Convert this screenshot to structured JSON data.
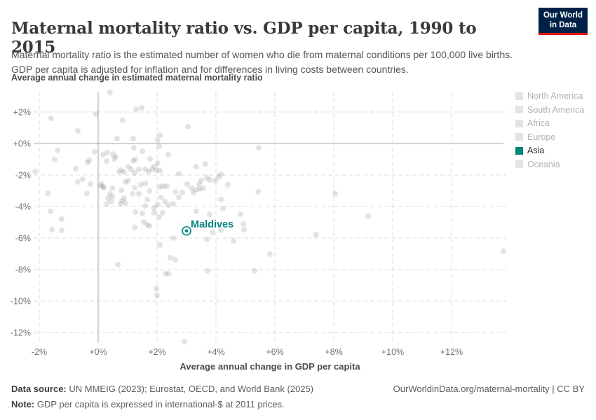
{
  "header": {
    "title": "Maternal mortality ratio vs. GDP per capita, 1990 to 2015",
    "subtitle": "Maternal mortality ratio is the estimated number of women who die from maternal conditions per 100,000 live births. GDP per capita is adjusted for inflation and for differences in living costs between countries."
  },
  "logo": {
    "line1": "Our World",
    "line2": "in Data",
    "bg": "#002147",
    "stripe": "#e3120b"
  },
  "legend": {
    "items": [
      {
        "label": "North America",
        "color": "#e4e4e4",
        "active": false
      },
      {
        "label": "South America",
        "color": "#e4e4e4",
        "active": false
      },
      {
        "label": "Africa",
        "color": "#e4e4e4",
        "active": false
      },
      {
        "label": "Europe",
        "color": "#e4e4e4",
        "active": false
      },
      {
        "label": "Asia",
        "color": "#00847e",
        "active": true
      },
      {
        "label": "Oceania",
        "color": "#e4e4e4",
        "active": false
      }
    ]
  },
  "footer": {
    "datasource_label": "Data source:",
    "datasource_text": " UN MMEIG (2023); Eurostat, OECD, and World Bank (2025)",
    "note_label": "Note:",
    "note_text": " GDP per capita is expressed in international-$ at 2011 prices.",
    "link": "OurWorldinData.org/maternal-mortality | CC BY"
  },
  "chart_data": {
    "type": "scatter",
    "title": "Maternal mortality ratio vs. GDP per capita, 1990 to 2015",
    "ylabel_top": "Average annual change in estimated maternal mortality ratio",
    "xlabel": "Average annual change in GDP per capita",
    "x_ticks": [
      "-2%",
      "+0%",
      "+2%",
      "+4%",
      "+6%",
      "+8%",
      "+10%",
      "+12%"
    ],
    "x_tick_values": [
      -2,
      0,
      2,
      4,
      6,
      8,
      10,
      12
    ],
    "y_ticks": [
      "+2%",
      "+0%",
      "-2%",
      "-4%",
      "-6%",
      "-8%",
      "-10%",
      "-12%"
    ],
    "y_tick_values": [
      2,
      0,
      -2,
      -4,
      -6,
      -8,
      -10,
      -12
    ],
    "xlim": [
      -2.2,
      13.9
    ],
    "ylim": [
      -12.7,
      3.3
    ],
    "grid": true,
    "legend_position": "right",
    "points_color": "#808080",
    "grid_color": "#dedede",
    "zero_line_color": "#a6a6a6",
    "tick_color": "#737373",
    "highlight": {
      "name": "Maldives",
      "x": 3.0,
      "y": -5.55,
      "color": "#00847e"
    },
    "points": [
      [
        0.4,
        3.24
      ],
      [
        1.29,
        2.18
      ],
      [
        1.48,
        2.27
      ],
      [
        -1.6,
        1.6
      ],
      [
        -0.07,
        1.87
      ],
      [
        0.83,
        1.47
      ],
      [
        3.05,
        1.07
      ],
      [
        -0.69,
        0.8
      ],
      [
        2.1,
        0.53
      ],
      [
        -1.38,
        -0.44
      ],
      [
        -1.48,
        -1.02
      ],
      [
        -2.14,
        -1.78
      ],
      [
        -0.76,
        -1.6
      ],
      [
        -0.36,
        -1.2
      ],
      [
        -0.31,
        -1.07
      ],
      [
        -0.12,
        -0.53
      ],
      [
        -0.69,
        -2.44
      ],
      [
        -0.52,
        -2.27
      ],
      [
        -0.26,
        -2.58
      ],
      [
        -0.38,
        -3.16
      ],
      [
        -1.71,
        -3.16
      ],
      [
        -1.62,
        -4.31
      ],
      [
        -1.24,
        -4.8
      ],
      [
        -1.57,
        -5.47
      ],
      [
        -1.24,
        -5.51
      ],
      [
        0.64,
        0.31
      ],
      [
        1.19,
        0.31
      ],
      [
        2.02,
        0.22
      ],
      [
        1.21,
        -0.27
      ],
      [
        1.5,
        -0.49
      ],
      [
        2.07,
        -0.18
      ],
      [
        0.17,
        -0.71
      ],
      [
        0.31,
        -0.58
      ],
      [
        0.5,
        -0.67
      ],
      [
        0.6,
        -0.84
      ],
      [
        0.55,
        -0.98
      ],
      [
        0.29,
        -1.11
      ],
      [
        1.76,
        -0.98
      ],
      [
        1.9,
        -1.47
      ],
      [
        2.02,
        -1.24
      ],
      [
        2.38,
        -0.71
      ],
      [
        1.26,
        -1.02
      ],
      [
        1.19,
        -1.11
      ],
      [
        1.02,
        -1.47
      ],
      [
        0.79,
        -1.69
      ],
      [
        0.71,
        -1.78
      ],
      [
        0.88,
        -1.82
      ],
      [
        1.12,
        -1.64
      ],
      [
        1.24,
        -1.87
      ],
      [
        1.38,
        -1.64
      ],
      [
        1.6,
        -1.64
      ],
      [
        1.71,
        -1.78
      ],
      [
        1.83,
        -1.64
      ],
      [
        1.98,
        -1.69
      ],
      [
        2.1,
        -1.73
      ],
      [
        2.74,
        -1.91
      ],
      [
        3.33,
        -1.47
      ],
      [
        3.64,
        -1.29
      ],
      [
        0.07,
        -2.67
      ],
      [
        0.19,
        -2.8
      ],
      [
        0.48,
        -2.84
      ],
      [
        0.79,
        -2.98
      ],
      [
        0.93,
        -2.44
      ],
      [
        1.02,
        -2.36
      ],
      [
        1.24,
        -2.8
      ],
      [
        1.38,
        -3.2
      ],
      [
        1.17,
        -3.2
      ],
      [
        1.45,
        -2.62
      ],
      [
        1.6,
        -2.53
      ],
      [
        1.74,
        -3.02
      ],
      [
        2.1,
        -2.76
      ],
      [
        2.21,
        -2.71
      ],
      [
        2.33,
        -2.71
      ],
      [
        2.62,
        -3.07
      ],
      [
        2.74,
        -3.42
      ],
      [
        2.86,
        -3.11
      ],
      [
        3.02,
        -2.58
      ],
      [
        3.17,
        -2.84
      ],
      [
        3.24,
        -3.11
      ],
      [
        3.33,
        -2.93
      ],
      [
        3.45,
        -2.89
      ],
      [
        3.5,
        -2.36
      ],
      [
        3.69,
        -2.18
      ],
      [
        3.79,
        -2.31
      ],
      [
        0.33,
        -3.47
      ],
      [
        0.45,
        -3.69
      ],
      [
        0.76,
        -3.82
      ],
      [
        0.93,
        -3.78
      ],
      [
        1.67,
        -3.56
      ],
      [
        2.02,
        -3.87
      ],
      [
        2.14,
        -3.42
      ],
      [
        2.26,
        -3.69
      ],
      [
        2.38,
        -3.91
      ],
      [
        2.55,
        -3.82
      ],
      [
        0.29,
        -3.82
      ],
      [
        1.6,
        -3.96
      ],
      [
        1.9,
        -4.09
      ],
      [
        0.12,
        -2.58
      ],
      [
        0.17,
        -2.76
      ],
      [
        0.4,
        -3.2
      ],
      [
        0.48,
        -3.38
      ],
      [
        0.81,
        -3.64
      ],
      [
        0.88,
        -3.47
      ],
      [
        5.45,
        -0.27
      ],
      [
        3.43,
        -2.58
      ],
      [
        3.57,
        -2.84
      ],
      [
        3.98,
        -2.36
      ],
      [
        4.1,
        -2.13
      ],
      [
        4.17,
        -1.96
      ],
      [
        4.4,
        -2.62
      ],
      [
        5.43,
        -3.07
      ],
      [
        8.05,
        -3.2
      ],
      [
        4.17,
        -3.56
      ],
      [
        4.24,
        -4.13
      ],
      [
        3.79,
        -4.49
      ],
      [
        3.33,
        -4.31
      ],
      [
        4.83,
        -4.49
      ],
      [
        3.88,
        -5.64
      ],
      [
        4.17,
        -5.51
      ],
      [
        4.93,
        -5.11
      ],
      [
        4.95,
        -5.47
      ],
      [
        3.69,
        -6.09
      ],
      [
        4.6,
        -6.18
      ],
      [
        7.4,
        -5.78
      ],
      [
        5.83,
        -7.02
      ],
      [
        3.71,
        -8.09
      ],
      [
        5.31,
        -8.09
      ],
      [
        1.26,
        -4.36
      ],
      [
        1.5,
        -4.44
      ],
      [
        1.9,
        -4.4
      ],
      [
        2.19,
        -4.4
      ],
      [
        2.07,
        -4.67
      ],
      [
        1.55,
        -4.98
      ],
      [
        1.67,
        -5.16
      ],
      [
        1.74,
        -5.24
      ],
      [
        1.24,
        -5.33
      ],
      [
        2.55,
        -6.0
      ],
      [
        2.1,
        -6.44
      ],
      [
        2.45,
        -7.24
      ],
      [
        2.62,
        -7.38
      ],
      [
        0.67,
        -7.69
      ],
      [
        2.29,
        -8.27
      ],
      [
        2.4,
        -8.27
      ],
      [
        1.98,
        -9.2
      ],
      [
        2.0,
        -9.64
      ],
      [
        2.93,
        -12.58
      ],
      [
        9.17,
        -4.62
      ],
      [
        13.76,
        -6.84
      ]
    ]
  }
}
